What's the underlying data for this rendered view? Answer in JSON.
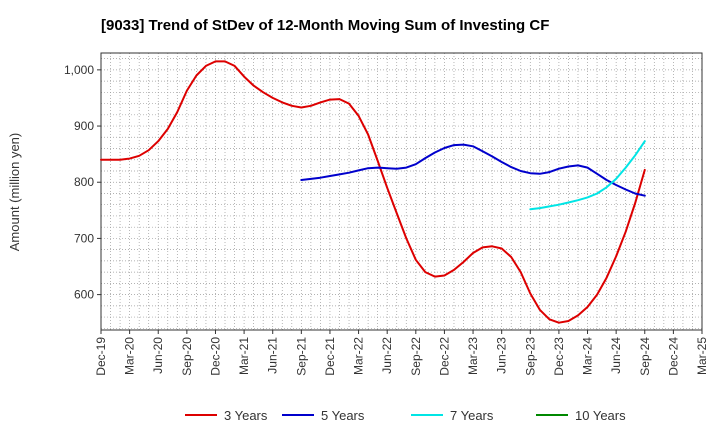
{
  "chart_data": {
    "type": "line",
    "title": "[9033]  Trend of StDev of 12-Month Moving Sum of Investing CF",
    "xlabel": "",
    "ylabel": "Amount (million yen)",
    "ylim": [
      537,
      1030
    ],
    "yticks": [
      600,
      700,
      800,
      900,
      1000
    ],
    "ytick_labels": [
      "600",
      "700",
      "800",
      "900",
      "1,000"
    ],
    "x_start": "2019-12",
    "x_end": "2025-03",
    "xtick_labels": [
      "Dec-19",
      "Mar-20",
      "Jun-20",
      "Sep-20",
      "Dec-20",
      "Mar-21",
      "Jun-21",
      "Sep-21",
      "Dec-21",
      "Mar-22",
      "Jun-22",
      "Sep-22",
      "Dec-22",
      "Mar-23",
      "Jun-23",
      "Sep-23",
      "Dec-23",
      "Mar-24",
      "Jun-24",
      "Sep-24",
      "Dec-24",
      "Mar-25"
    ],
    "grid": true,
    "legend_position": "bottom",
    "series": [
      {
        "name": "3 Years",
        "color": "#dd0000",
        "x": [
          "2019-12",
          "2020-01",
          "2020-02",
          "2020-03",
          "2020-04",
          "2020-05",
          "2020-06",
          "2020-07",
          "2020-08",
          "2020-09",
          "2020-10",
          "2020-11",
          "2020-12",
          "2021-01",
          "2021-02",
          "2021-03",
          "2021-04",
          "2021-05",
          "2021-06",
          "2021-07",
          "2021-08",
          "2021-09",
          "2021-10",
          "2021-11",
          "2021-12",
          "2022-01",
          "2022-02",
          "2022-03",
          "2022-04",
          "2022-05",
          "2022-06",
          "2022-07",
          "2022-08",
          "2022-09",
          "2022-10",
          "2022-11",
          "2022-12",
          "2023-01",
          "2023-02",
          "2023-03",
          "2023-04",
          "2023-05",
          "2023-06",
          "2023-07",
          "2023-08",
          "2023-09",
          "2023-10",
          "2023-11",
          "2023-12",
          "2024-01",
          "2024-02",
          "2024-03",
          "2024-04",
          "2024-05",
          "2024-06",
          "2024-07",
          "2024-08",
          "2024-09"
        ],
        "values": [
          840,
          840,
          840,
          842,
          847,
          857,
          873,
          895,
          925,
          963,
          990,
          1007,
          1015,
          1015,
          1007,
          988,
          972,
          960,
          950,
          942,
          936,
          933,
          936,
          942,
          947,
          948,
          940,
          918,
          885,
          838,
          790,
          745,
          700,
          662,
          640,
          632,
          634,
          644,
          658,
          674,
          684,
          686,
          682,
          667,
          640,
          602,
          573,
          556,
          550,
          553,
          563,
          578,
          600,
          630,
          668,
          712,
          763,
          822
        ]
      },
      {
        "name": "5 Years",
        "color": "#0000cc",
        "x": [
          "2021-09",
          "2021-10",
          "2021-11",
          "2021-12",
          "2022-01",
          "2022-02",
          "2022-03",
          "2022-04",
          "2022-05",
          "2022-06",
          "2022-07",
          "2022-08",
          "2022-09",
          "2022-10",
          "2022-11",
          "2022-12",
          "2023-01",
          "2023-02",
          "2023-03",
          "2023-04",
          "2023-05",
          "2023-06",
          "2023-07",
          "2023-08",
          "2023-09",
          "2023-10",
          "2023-11",
          "2023-12",
          "2024-01",
          "2024-02",
          "2024-03",
          "2024-04",
          "2024-05",
          "2024-06",
          "2024-07",
          "2024-08",
          "2024-09"
        ],
        "values": [
          804,
          806,
          808,
          811,
          814,
          817,
          821,
          825,
          826,
          825,
          824,
          826,
          832,
          843,
          853,
          861,
          866,
          867,
          864,
          855,
          846,
          836,
          827,
          820,
          816,
          815,
          818,
          824,
          828,
          830,
          826,
          815,
          804,
          795,
          787,
          780,
          776
        ]
      },
      {
        "name": "7 Years",
        "color": "#00e5e5",
        "x": [
          "2023-09",
          "2023-10",
          "2023-11",
          "2023-12",
          "2024-01",
          "2024-02",
          "2024-03",
          "2024-04",
          "2024-05",
          "2024-06",
          "2024-07",
          "2024-08",
          "2024-09"
        ],
        "values": [
          752,
          754,
          757,
          760,
          764,
          768,
          773,
          780,
          791,
          806,
          826,
          848,
          873
        ]
      },
      {
        "name": "10 Years",
        "color": "#008800",
        "x": [],
        "values": []
      }
    ]
  }
}
